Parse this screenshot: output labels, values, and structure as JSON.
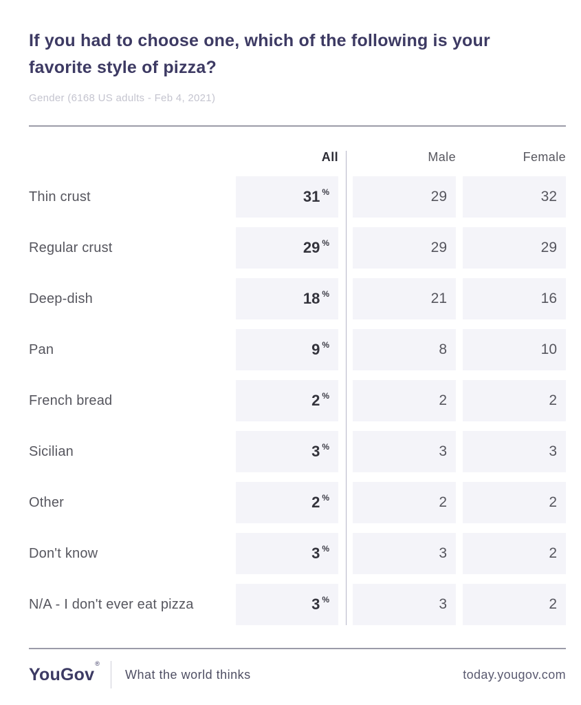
{
  "header": {
    "title": "If you had to choose one, which of the following is your favorite style of pizza?",
    "subtitle": "Gender (6168 US adults - Feb 4, 2021)"
  },
  "table": {
    "columns": [
      "All",
      "Male",
      "Female"
    ],
    "percent_symbol": "%",
    "rows": [
      {
        "label": "Thin crust",
        "all": "31",
        "male": "29",
        "female": "32"
      },
      {
        "label": "Regular crust",
        "all": "29",
        "male": "29",
        "female": "29"
      },
      {
        "label": "Deep-dish",
        "all": "18",
        "male": "21",
        "female": "16"
      },
      {
        "label": "Pan",
        "all": "9",
        "male": "8",
        "female": "10"
      },
      {
        "label": "French bread",
        "all": "2",
        "male": "2",
        "female": "2"
      },
      {
        "label": "Sicilian",
        "all": "3",
        "male": "3",
        "female": "3"
      },
      {
        "label": "Other",
        "all": "2",
        "male": "2",
        "female": "2"
      },
      {
        "label": "Don't know",
        "all": "3",
        "male": "3",
        "female": "2"
      },
      {
        "label": "N/A - I don't ever eat pizza",
        "all": "3",
        "male": "3",
        "female": "2"
      }
    ]
  },
  "footer": {
    "logo": "YouGov",
    "registered_mark": "®",
    "tagline": "What the world thinks",
    "url": "today.yougov.com"
  },
  "colors": {
    "title": "#3d3a63",
    "subtitle": "#c4c4cf",
    "cell_background": "#f4f4f9",
    "all_value": "#33333c",
    "secondary_value": "#56565e",
    "divider": "#9b9ba8",
    "column_separator": "#b5b5c8"
  },
  "chart_data": {
    "type": "table",
    "title": "If you had to choose one, which of the following is your favorite style of pizza?",
    "subtitle": "Gender (6168 US adults - Feb 4, 2021)",
    "sample_size": 6168,
    "date": "Feb 4, 2021",
    "unit": "%",
    "columns": [
      "All",
      "Male",
      "Female"
    ],
    "categories": [
      "Thin crust",
      "Regular crust",
      "Deep-dish",
      "Pan",
      "French bread",
      "Sicilian",
      "Other",
      "Don't know",
      "N/A - I don't ever eat pizza"
    ],
    "series": [
      {
        "name": "All",
        "values": [
          31,
          29,
          18,
          9,
          2,
          3,
          2,
          3,
          3
        ]
      },
      {
        "name": "Male",
        "values": [
          29,
          29,
          21,
          8,
          2,
          3,
          2,
          3,
          3
        ]
      },
      {
        "name": "Female",
        "values": [
          32,
          29,
          16,
          10,
          2,
          3,
          2,
          2,
          2
        ]
      }
    ]
  }
}
